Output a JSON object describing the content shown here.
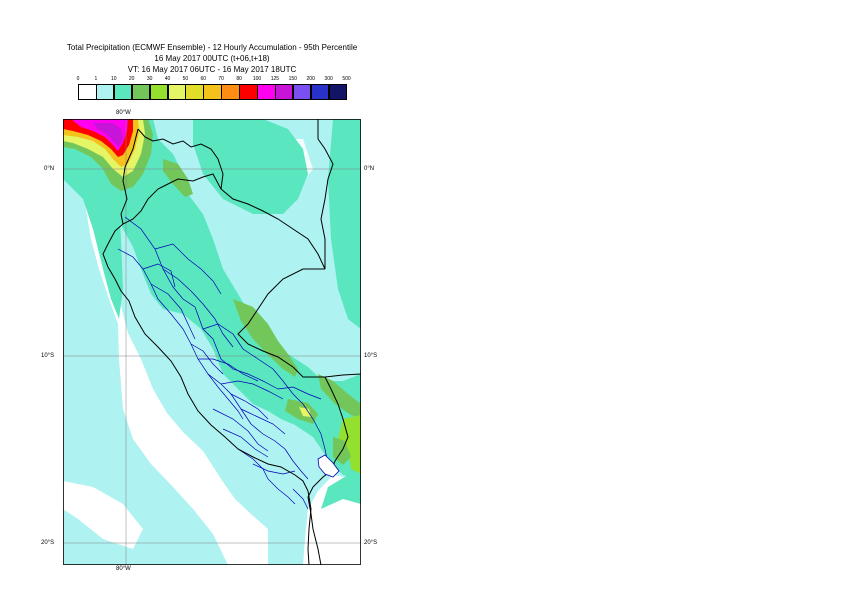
{
  "header": {
    "title": "Total Precipitation (ECMWF Ensemble) - 12 Hourly Accumulation - 95th Percentile",
    "base_time": "16 May 2017 00UTC (t+06,t+18)",
    "valid_time": "VT: 16 May 2017 06UTC - 16 May 2017 18UTC"
  },
  "legend": {
    "ticks": [
      "0",
      "1",
      "10",
      "20",
      "30",
      "40",
      "50",
      "60",
      "70",
      "80",
      "100",
      "125",
      "150",
      "200",
      "300",
      "500"
    ],
    "colors": [
      "#ffffff",
      "#aff2f2",
      "#5ae6bf",
      "#73c75a",
      "#94e02e",
      "#e4f566",
      "#e1de2a",
      "#f5c21b",
      "#ff8c13",
      "#ff0000",
      "#ff00f0",
      "#c714d9",
      "#7a50f0",
      "#2832c8",
      "#141466"
    ]
  },
  "map": {
    "lon_labels": {
      "top": "80°W",
      "bottom": "80°W"
    },
    "lat_labels": [
      {
        "left": "0°N",
        "right": "0°N"
      },
      {
        "left": "10°S",
        "right": "10°S"
      },
      {
        "left": "20°S",
        "right": "20°S"
      }
    ],
    "colors": {
      "background": "#ffffff",
      "light": "#aff2f2",
      "medium": "#5ae6bf",
      "green": "#73c75a",
      "yellowgreen": "#94e02e",
      "yellow": "#e4f566",
      "orange": "#f5c21b",
      "red": "#ff0000",
      "magenta": "#ff00f0",
      "purple": "#c714d9",
      "national_border": "#000000",
      "regional_border": "#0000b4",
      "gridline": "#808080"
    }
  }
}
